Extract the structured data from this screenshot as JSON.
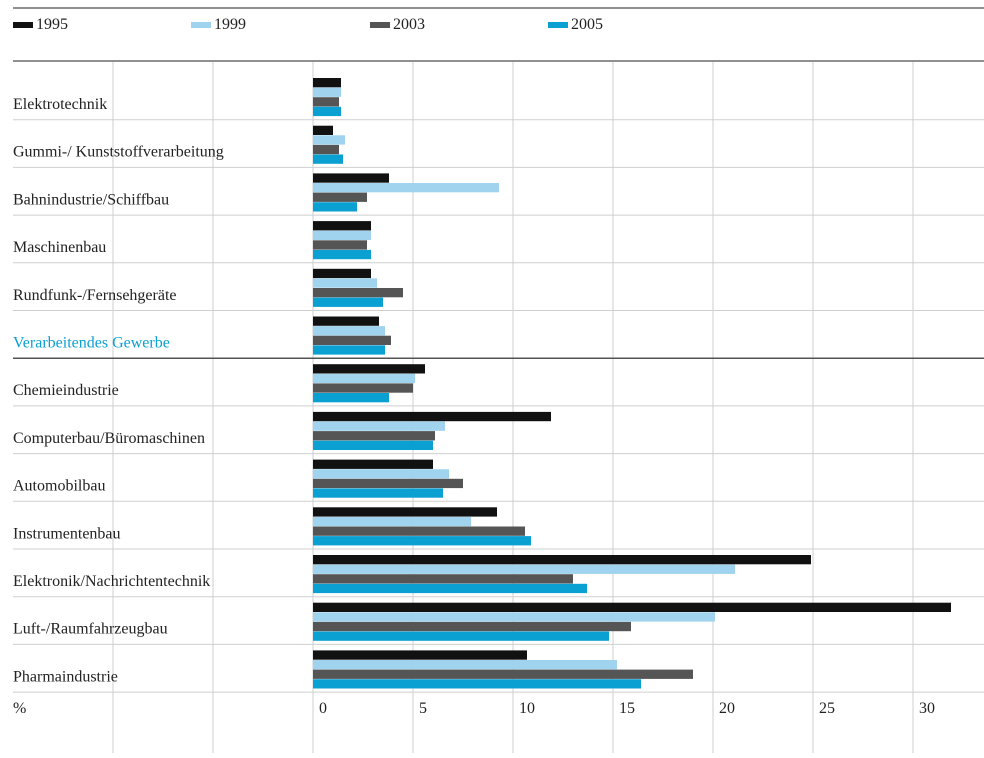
{
  "chart_data": {
    "type": "bar",
    "orientation": "horizontal",
    "categories": [
      "Elektrotechnik",
      "Gummi-/ Kunststoffverarbeitung",
      "Bahnindustrie/Schiffbau",
      "Maschinenbau",
      "Rundfunk-/Fernsehgeräte",
      "Verarbeitendes Gewerbe",
      "Chemieindustrie",
      "Computerbau/Büromaschinen",
      "Automobilbau",
      "Instrumentenbau",
      "Elektronik/Nachrichtentechnik",
      "Luft-/Raumfahrzeugbau",
      "Pharmaindustrie"
    ],
    "highlight_category": "Verarbeitendes Gewerbe",
    "series": [
      {
        "name": "1995",
        "color": "#111111",
        "values": [
          1.4,
          1.0,
          3.8,
          2.9,
          2.9,
          3.3,
          5.6,
          11.9,
          6.0,
          9.2,
          24.9,
          31.9,
          10.7
        ]
      },
      {
        "name": "1999",
        "color": "#9fd3ee",
        "values": [
          1.4,
          1.6,
          9.3,
          2.9,
          3.2,
          3.6,
          5.1,
          6.6,
          6.8,
          7.9,
          21.1,
          20.1,
          15.2
        ]
      },
      {
        "name": "2003",
        "color": "#555555",
        "values": [
          1.3,
          1.3,
          2.7,
          2.7,
          4.5,
          3.9,
          5.0,
          6.1,
          7.5,
          10.6,
          13.0,
          15.9,
          19.0
        ]
      },
      {
        "name": "2005",
        "color": "#0aa0d2",
        "values": [
          1.4,
          1.5,
          2.2,
          2.9,
          3.5,
          3.6,
          3.8,
          6.0,
          6.5,
          10.9,
          13.7,
          14.8,
          16.4
        ]
      }
    ],
    "x_ticks": [
      "0",
      "5",
      "10",
      "15",
      "20",
      "25",
      "30"
    ],
    "x_unit": "%",
    "xlim": [
      0,
      32.5
    ],
    "grid": true,
    "legend_position": "top"
  },
  "colors": {
    "highlight_label": "#0aa0d2",
    "grid": "#cfcfcf",
    "rule": "#222222",
    "text": "#222222"
  }
}
